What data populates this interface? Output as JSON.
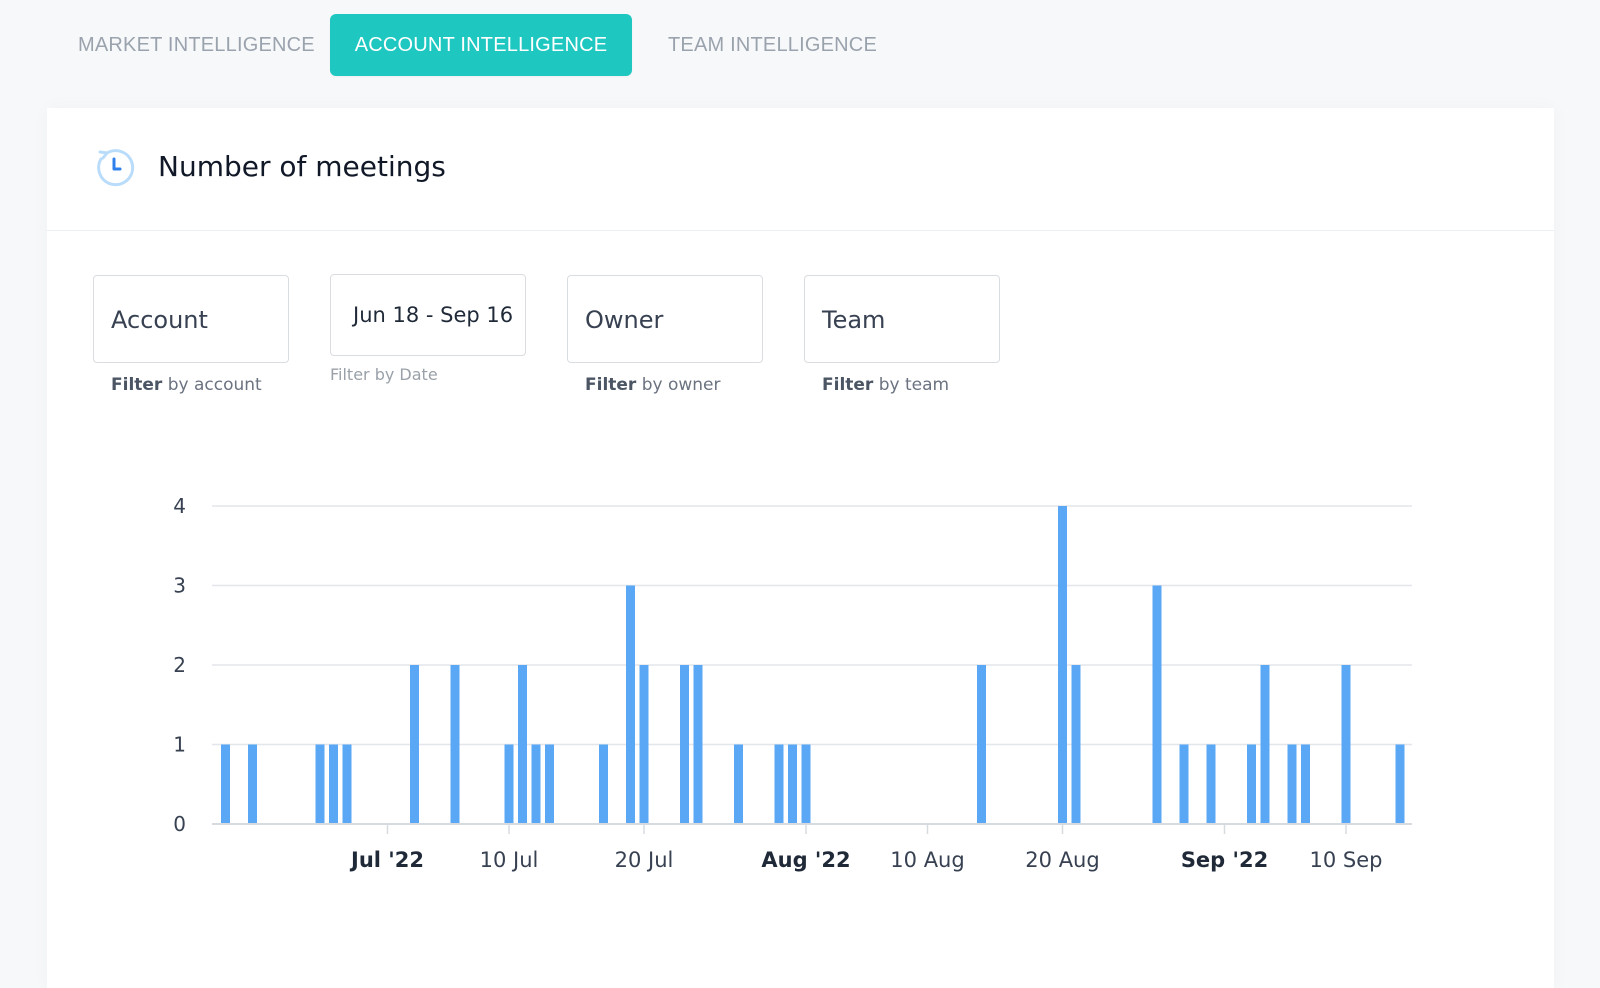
{
  "tabs": [
    {
      "label": "MARKET INTELLIGENCE",
      "active": false
    },
    {
      "label": "ACCOUNT INTELLIGENCE",
      "active": true
    },
    {
      "label": "TEAM INTELLIGENCE",
      "active": false
    }
  ],
  "colors": {
    "accent": "#1ec8c1",
    "bar": "#5aa8f5",
    "grid": "#e3e6ea"
  },
  "card": {
    "title": "Number of meetings",
    "icon": "history-clock-icon"
  },
  "filters": {
    "account": {
      "value": "Account",
      "hint_bold": "Filter",
      "hint_rest": " by account"
    },
    "date": {
      "value": "Jun 18  - Sep 16",
      "hint": "Filter by Date"
    },
    "owner": {
      "value": "Owner",
      "hint_bold": "Filter",
      "hint_rest": " by owner"
    },
    "team": {
      "value": "Team",
      "hint_bold": "Filter",
      "hint_rest": " by team"
    }
  },
  "chart_data": {
    "type": "bar",
    "x_type": "date",
    "x_range": [
      "2022-06-18",
      "2022-09-16"
    ],
    "ylim": [
      0,
      4
    ],
    "y_ticks": [
      0,
      1,
      2,
      3,
      4
    ],
    "x_ticks": [
      {
        "date": "2022-07-01",
        "label": "Jul '22",
        "bold": true
      },
      {
        "date": "2022-07-10",
        "label": "10 Jul",
        "bold": false
      },
      {
        "date": "2022-07-20",
        "label": "20 Jul",
        "bold": false
      },
      {
        "date": "2022-08-01",
        "label": "Aug '22",
        "bold": true
      },
      {
        "date": "2022-08-10",
        "label": "10 Aug",
        "bold": false
      },
      {
        "date": "2022-08-20",
        "label": "20 Aug",
        "bold": false
      },
      {
        "date": "2022-09-01",
        "label": "Sep '22",
        "bold": true
      },
      {
        "date": "2022-09-10",
        "label": "10 Sep",
        "bold": false
      }
    ],
    "grid": true,
    "legend": "none",
    "series": [
      {
        "values": [
          {
            "date": "2022-06-19",
            "y": 1
          },
          {
            "date": "2022-06-21",
            "y": 1
          },
          {
            "date": "2022-06-26",
            "y": 1
          },
          {
            "date": "2022-06-27",
            "y": 1
          },
          {
            "date": "2022-06-28",
            "y": 1
          },
          {
            "date": "2022-07-03",
            "y": 2
          },
          {
            "date": "2022-07-06",
            "y": 2
          },
          {
            "date": "2022-07-10",
            "y": 1
          },
          {
            "date": "2022-07-11",
            "y": 2
          },
          {
            "date": "2022-07-12",
            "y": 1
          },
          {
            "date": "2022-07-13",
            "y": 1
          },
          {
            "date": "2022-07-17",
            "y": 1
          },
          {
            "date": "2022-07-19",
            "y": 3
          },
          {
            "date": "2022-07-20",
            "y": 2
          },
          {
            "date": "2022-07-23",
            "y": 2
          },
          {
            "date": "2022-07-24",
            "y": 2
          },
          {
            "date": "2022-07-27",
            "y": 1
          },
          {
            "date": "2022-07-30",
            "y": 1
          },
          {
            "date": "2022-07-31",
            "y": 1
          },
          {
            "date": "2022-08-01",
            "y": 1
          },
          {
            "date": "2022-08-14",
            "y": 2
          },
          {
            "date": "2022-08-20",
            "y": 4
          },
          {
            "date": "2022-08-21",
            "y": 2
          },
          {
            "date": "2022-08-27",
            "y": 3
          },
          {
            "date": "2022-08-29",
            "y": 1
          },
          {
            "date": "2022-08-31",
            "y": 1
          },
          {
            "date": "2022-09-03",
            "y": 1
          },
          {
            "date": "2022-09-04",
            "y": 2
          },
          {
            "date": "2022-09-06",
            "y": 1
          },
          {
            "date": "2022-09-07",
            "y": 1
          },
          {
            "date": "2022-09-10",
            "y": 2
          },
          {
            "date": "2022-09-14",
            "y": 1
          }
        ]
      }
    ]
  }
}
